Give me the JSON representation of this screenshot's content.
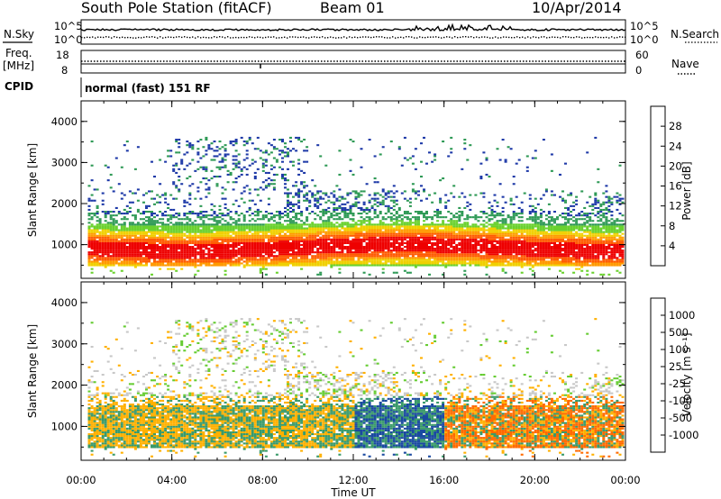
{
  "header": {
    "station": "South Pole Station (fitACF)",
    "beam": "Beam 01",
    "date": "10/Apr/2014"
  },
  "top_panels": {
    "nsky_label": "N.Sky",
    "nsearch_label": "N.Search",
    "noise_ticks": [
      "10^5",
      "10^0"
    ],
    "freq_label": "Freq.",
    "freq_unit": "[MHz]",
    "freq_ticks": [
      "18",
      "8"
    ],
    "nave_label": "Nave",
    "nave_ticks": [
      "60",
      "0"
    ],
    "cpid_label": "CPID",
    "cpid_text": "normal (fast) 151 RF"
  },
  "axes": {
    "xlabel": "Time UT",
    "x_ticks": [
      "00:00",
      "04:00",
      "08:00",
      "12:00",
      "16:00",
      "20:00",
      "00:00"
    ],
    "ylabel": "Slant Range [km]",
    "y_ticks": [
      "1000",
      "2000",
      "3000",
      "4000"
    ]
  },
  "colorbars": {
    "power": {
      "label": "Power [dB]",
      "ticks": [
        "28",
        "24",
        "20",
        "16",
        "12",
        "8",
        "4"
      ],
      "colors": [
        "#1820ff",
        "#1f3aa8",
        "#2f9a56",
        "#6ad12e",
        "#f0d000",
        "#ff9a00",
        "#ff5a00",
        "#ee0000"
      ]
    },
    "velocity": {
      "label": "Velocity [m s⁻¹]",
      "ticks": [
        "1000",
        "500",
        "100",
        "25",
        "-25",
        "-100",
        "-500",
        "-1000"
      ],
      "colors": [
        "#e00000",
        "#ff6a00",
        "#ffb000",
        "#c8c8c8",
        "#c8c8c8",
        "#66cc33",
        "#3a9a6a",
        "#1a4aa0",
        "#2030d8"
      ]
    }
  },
  "chart_data": {
    "type": "heatmap",
    "x_range_hours_ut": [
      0,
      24
    ],
    "y_range_km": [
      180,
      4500
    ],
    "panels": [
      "Power [dB]",
      "Velocity [m s⁻¹]"
    ]
  }
}
